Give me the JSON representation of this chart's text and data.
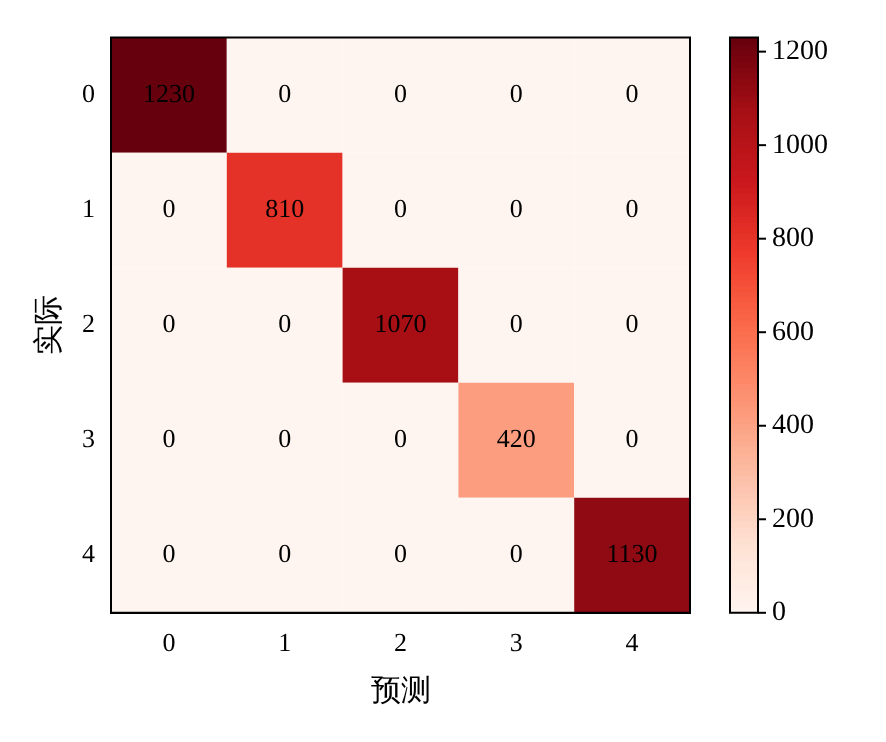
{
  "chart_data": {
    "type": "heatmap",
    "xlabel": "预测",
    "ylabel": "实际",
    "categories": [
      "0",
      "1",
      "2",
      "3",
      "4"
    ],
    "y_categories": [
      "0",
      "1",
      "2",
      "3",
      "4"
    ],
    "cells": [
      [
        1230,
        0,
        0,
        0,
        0
      ],
      [
        0,
        810,
        0,
        0,
        0
      ],
      [
        0,
        0,
        1070,
        0,
        0
      ],
      [
        0,
        0,
        0,
        420,
        0
      ],
      [
        0,
        0,
        0,
        0,
        1130
      ]
    ],
    "clim": [
      0,
      1230
    ],
    "cticks": [
      0,
      200,
      400,
      600,
      800,
      1000,
      1200
    ],
    "data_labels": true
  }
}
